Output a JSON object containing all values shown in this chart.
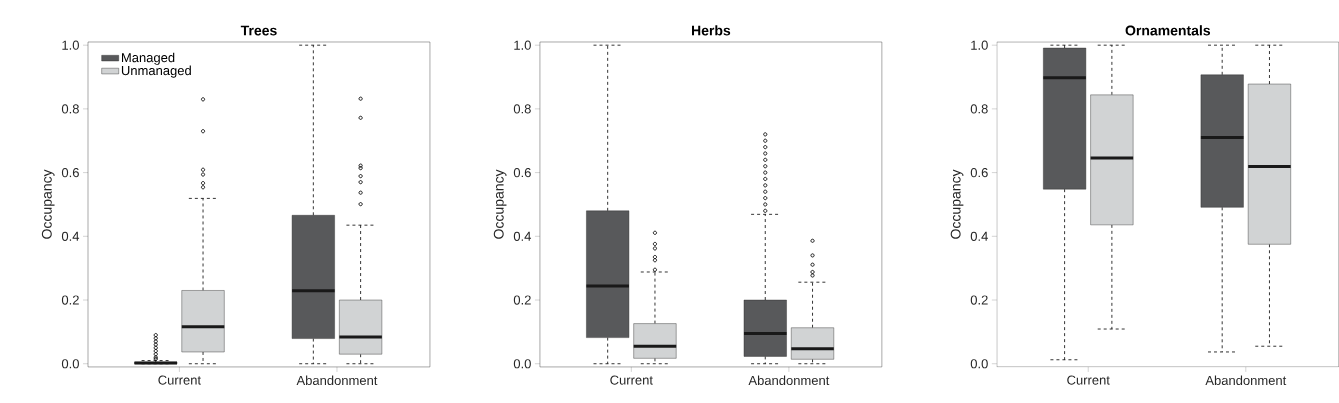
{
  "chart_data": [
    {
      "type": "box",
      "title": "Trees",
      "ylabel": "Occupancy",
      "categories": [
        "Current",
        "Abandonment"
      ],
      "ylim": [
        -0.01,
        1.01
      ],
      "yticks": [
        {
          "value": 0,
          "label": "0.0"
        },
        {
          "value": 0.2,
          "label": "0.2"
        },
        {
          "value": 0.4,
          "label": "0.4"
        },
        {
          "value": 0.6,
          "label": "0.6"
        },
        {
          "value": 0.8,
          "label": "0.8"
        },
        {
          "value": 1,
          "label": "1.0"
        }
      ],
      "legend": "top left",
      "series": [
        {
          "name": "Managed",
          "color": "#58595b",
          "boxes": [
            {
              "low": 0,
              "q1": 0,
              "median": 0.002,
              "q3": 0.005,
              "high": 0.01,
              "outliers": [
                0.015,
                0.02,
                0.03,
                0.04,
                0.05,
                0.06,
                0.07,
                0.08,
                0.09
              ]
            },
            {
              "low": 0,
              "q1": 0.079,
              "median": 0.229,
              "q3": 0.466,
              "high": 1.0
            }
          ]
        },
        {
          "name": "Unmanaged",
          "color": "#d1d3d4",
          "boxes": [
            {
              "low": 0,
              "q1": 0.037,
              "median": 0.116,
              "q3": 0.23,
              "high": 0.519,
              "outliers": [
                0.554,
                0.567,
                0.594,
                0.609,
                0.73,
                0.83
              ]
            },
            {
              "low": 0,
              "q1": 0.03,
              "median": 0.084,
              "q3": 0.2,
              "high": 0.435,
              "outliers": [
                0.501,
                0.537,
                0.57,
                0.589,
                0.614,
                0.622,
                0.772,
                0.832
              ]
            }
          ]
        }
      ]
    },
    {
      "type": "box",
      "title": "Herbs",
      "ylabel": "Occupancy",
      "categories": [
        "Current",
        "Abandonment"
      ],
      "ylim": [
        -0.01,
        1.01
      ],
      "yticks": [
        {
          "value": 0,
          "label": "0.0"
        },
        {
          "value": 0.2,
          "label": "0.2"
        },
        {
          "value": 0.4,
          "label": "0.4"
        },
        {
          "value": 0.6,
          "label": "0.6"
        },
        {
          "value": 0.8,
          "label": "0.8"
        },
        {
          "value": 1,
          "label": "1.0"
        }
      ],
      "series": [
        {
          "color": "#58595b",
          "boxes": [
            {
              "low": 0,
              "q1": 0.082,
              "median": 0.244,
              "q3": 0.48,
              "high": 1.0
            },
            {
              "low": 0,
              "q1": 0.023,
              "median": 0.095,
              "q3": 0.2,
              "high": 0.469,
              "outliers": [
                0.48,
                0.5,
                0.52,
                0.54,
                0.56,
                0.58,
                0.6,
                0.62,
                0.64,
                0.66,
                0.68,
                0.7,
                0.72
              ]
            }
          ]
        },
        {
          "color": "#d1d3d4",
          "boxes": [
            {
              "low": 0,
              "q1": 0.017,
              "median": 0.055,
              "q3": 0.126,
              "high": 0.288,
              "outliers": [
                0.295,
                0.325,
                0.335,
                0.362,
                0.376,
                0.411
              ]
            },
            {
              "low": 0,
              "q1": 0.014,
              "median": 0.047,
              "q3": 0.113,
              "high": 0.256,
              "outliers": [
                0.277,
                0.288,
                0.311,
                0.34,
                0.386
              ]
            }
          ]
        }
      ]
    },
    {
      "type": "box",
      "title": "Ornamentals",
      "ylabel": "Occupancy",
      "categories": [
        "Current",
        "Abandonment"
      ],
      "ylim": [
        -0.01,
        1.01
      ],
      "yticks": [
        {
          "value": 0,
          "label": "0.0"
        },
        {
          "value": 0.2,
          "label": "0.2"
        },
        {
          "value": 0.4,
          "label": "0.4"
        },
        {
          "value": 0.6,
          "label": "0.6"
        },
        {
          "value": 0.8,
          "label": "0.8"
        },
        {
          "value": 1,
          "label": "1.0"
        }
      ],
      "series": [
        {
          "color": "#58595b",
          "boxes": [
            {
              "low": 0.0125,
              "q1": 0.548,
              "median": 0.898,
              "q3": 0.991,
              "high": 1.0
            },
            {
              "low": 0.037,
              "q1": 0.491,
              "median": 0.71,
              "q3": 0.907,
              "high": 1.0
            }
          ]
        },
        {
          "color": "#d1d3d4",
          "boxes": [
            {
              "low": 0.109,
              "q1": 0.436,
              "median": 0.646,
              "q3": 0.844,
              "high": 1.0
            },
            {
              "low": 0.055,
              "q1": 0.375,
              "median": 0.619,
              "q3": 0.878,
              "high": 1.0
            }
          ]
        }
      ]
    }
  ]
}
